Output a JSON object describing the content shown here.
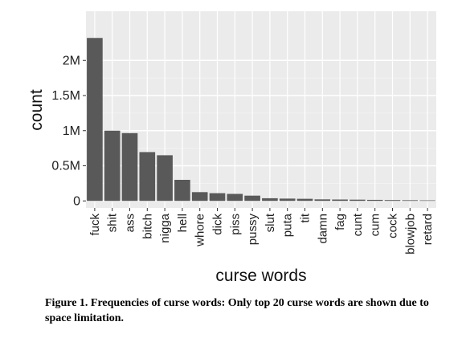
{
  "chart_data": {
    "type": "bar",
    "categories": [
      "fuck",
      "shit",
      "ass",
      "bitch",
      "nigga",
      "hell",
      "whore",
      "dick",
      "piss",
      "pussy",
      "slut",
      "puta",
      "tit",
      "damn",
      "fag",
      "cunt",
      "cum",
      "cock",
      "blowjob",
      "retard"
    ],
    "values": [
      2320000,
      1000000,
      965000,
      695000,
      650000,
      300000,
      125000,
      110000,
      100000,
      75000,
      38000,
      33000,
      30000,
      22000,
      20000,
      18000,
      15000,
      12000,
      10000,
      8000
    ],
    "xlabel": "curse words",
    "ylabel": "count",
    "yticks": [
      0,
      500000,
      1000000,
      1500000,
      2000000
    ],
    "ytick_labels": [
      "0",
      "0.5M",
      "1M",
      "1.5M",
      "2M"
    ],
    "ylim": [
      -100000,
      2700000
    ],
    "grid": true,
    "colors": {
      "bar": "#595959",
      "panel": "#ebebeb",
      "grid_major": "#ffffff",
      "grid_minor": "#f4f4f4"
    }
  },
  "caption": "Figure 1.  Frequencies of curse words:  Only top 20 curse words are shown due to space limitation."
}
